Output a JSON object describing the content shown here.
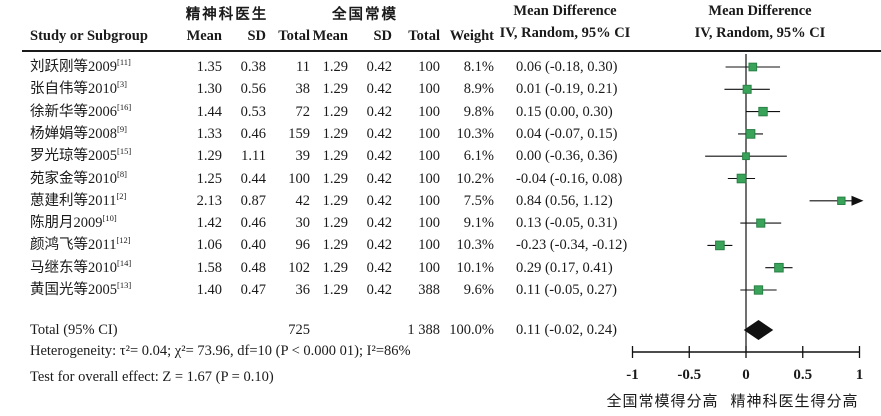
{
  "table": {
    "headers": {
      "group1": "精神科医生",
      "group2": "全国常模",
      "study": "Study or Subgroup",
      "mean": "Mean",
      "sd": "SD",
      "total": "Total",
      "weight": "Weight",
      "md_line1": "Mean Difference",
      "md_line2": "IV, Random, 95% CI"
    },
    "rows": [
      {
        "study": "刘跃刚等2009",
        "ref": "[11]",
        "mean1": "1.35",
        "sd1": "0.38",
        "total1": "11",
        "mean2": "1.29",
        "sd2": "0.42",
        "total2": "100",
        "weight": "8.1%",
        "ci_text": "0.06 (-0.18, 0.30)"
      },
      {
        "study": "张自伟等2010",
        "ref": "[3]",
        "mean1": "1.30",
        "sd1": "0.56",
        "total1": "38",
        "mean2": "1.29",
        "sd2": "0.42",
        "total2": "100",
        "weight": "8.9%",
        "ci_text": "0.01 (-0.19, 0.21)"
      },
      {
        "study": "徐新华等2006",
        "ref": "[16]",
        "mean1": "1.44",
        "sd1": "0.53",
        "total1": "72",
        "mean2": "1.29",
        "sd2": "0.42",
        "total2": "100",
        "weight": "9.8%",
        "ci_text": "0.15 (0.00, 0.30)"
      },
      {
        "study": "杨婵娟等2008",
        "ref": "[9]",
        "mean1": "1.33",
        "sd1": "0.46",
        "total1": "159",
        "mean2": "1.29",
        "sd2": "0.42",
        "total2": "100",
        "weight": "10.3%",
        "ci_text": "0.04 (-0.07, 0.15)"
      },
      {
        "study": "罗光琼等2005",
        "ref": "[15]",
        "mean1": "1.29",
        "sd1": "1.11",
        "total1": "39",
        "mean2": "1.29",
        "sd2": "0.42",
        "total2": "100",
        "weight": "6.1%",
        "ci_text": "0.00 (-0.36, 0.36)"
      },
      {
        "study": "苑家金等2010",
        "ref": "[8]",
        "mean1": "1.25",
        "sd1": "0.44",
        "total1": "100",
        "mean2": "1.29",
        "sd2": "0.42",
        "total2": "100",
        "weight": "10.2%",
        "ci_text": "-0.04 (-0.16, 0.08)"
      },
      {
        "study": "葸建利等2011",
        "ref": "[2]",
        "mean1": "2.13",
        "sd1": "0.87",
        "total1": "42",
        "mean2": "1.29",
        "sd2": "0.42",
        "total2": "100",
        "weight": "7.5%",
        "ci_text": "0.84 (0.56, 1.12)"
      },
      {
        "study": "陈朋月2009",
        "ref": "[10]",
        "mean1": "1.42",
        "sd1": "0.46",
        "total1": "30",
        "mean2": "1.29",
        "sd2": "0.42",
        "total2": "100",
        "weight": "9.1%",
        "ci_text": "0.13 (-0.05, 0.31)"
      },
      {
        "study": "颜鸿飞等2011",
        "ref": "[12]",
        "mean1": "1.06",
        "sd1": "0.40",
        "total1": "96",
        "mean2": "1.29",
        "sd2": "0.42",
        "total2": "100",
        "weight": "10.3%",
        "ci_text": "-0.23 (-0.34, -0.12)"
      },
      {
        "study": "马继东等2010",
        "ref": "[14]",
        "mean1": "1.58",
        "sd1": "0.48",
        "total1": "102",
        "mean2": "1.29",
        "sd2": "0.42",
        "total2": "100",
        "weight": "10.1%",
        "ci_text": "0.29 (0.17, 0.41)"
      },
      {
        "study": "黄国光等2005",
        "ref": "[13]",
        "mean1": "1.40",
        "sd1": "0.47",
        "total1": "36",
        "mean2": "1.29",
        "sd2": "0.42",
        "total2": "388",
        "weight": "9.6%",
        "ci_text": "0.11 (-0.05, 0.27)"
      }
    ],
    "total_row": {
      "label": "Total (95% CI)",
      "total1": "725",
      "total2": "1 388",
      "weight": "100.0%",
      "ci_text": "0.11 (-0.02, 0.24)"
    },
    "heterogeneity": "Heterogeneity: τ²= 0.04;  χ²= 73.96, df=10 (P < 0.000 01); I²=86%",
    "overall_effect": "Test for overall effect: Z = 1.67 (P = 0.10)"
  },
  "chart_data": {
    "type": "scatter",
    "subtype": "forest-plot",
    "title": "Mean Difference IV, Random, 95% CI",
    "xlim": [
      -1,
      1
    ],
    "x_ticks": [
      {
        "v": -1,
        "label": "-1"
      },
      {
        "v": -0.5,
        "label": "-0.5"
      },
      {
        "v": 0,
        "label": "0"
      },
      {
        "v": 0.5,
        "label": "0.5"
      },
      {
        "v": 1,
        "label": "1"
      }
    ],
    "xlabel_left": "全国常模得分高",
    "xlabel_right": "精神科医生得分高",
    "grid": false,
    "points": [
      {
        "study": "刘跃刚等2009",
        "md": 0.06,
        "lo": -0.18,
        "hi": 0.3,
        "weight_pct": 8.1
      },
      {
        "study": "张自伟等2010",
        "md": 0.01,
        "lo": -0.19,
        "hi": 0.21,
        "weight_pct": 8.9
      },
      {
        "study": "徐新华等2006",
        "md": 0.15,
        "lo": 0.0,
        "hi": 0.3,
        "weight_pct": 9.8
      },
      {
        "study": "杨婵娟等2008",
        "md": 0.04,
        "lo": -0.07,
        "hi": 0.15,
        "weight_pct": 10.3
      },
      {
        "study": "罗光琼等2005",
        "md": 0.0,
        "lo": -0.36,
        "hi": 0.36,
        "weight_pct": 6.1
      },
      {
        "study": "苑家金等2010",
        "md": -0.04,
        "lo": -0.16,
        "hi": 0.08,
        "weight_pct": 10.2
      },
      {
        "study": "葸建利等2011",
        "md": 0.84,
        "lo": 0.56,
        "hi": 1.12,
        "weight_pct": 7.5
      },
      {
        "study": "陈朋月2009",
        "md": 0.13,
        "lo": -0.05,
        "hi": 0.31,
        "weight_pct": 9.1
      },
      {
        "study": "颜鸿飞等2011",
        "md": -0.23,
        "lo": -0.34,
        "hi": -0.12,
        "weight_pct": 10.3
      },
      {
        "study": "马继东等2010",
        "md": 0.29,
        "lo": 0.17,
        "hi": 0.41,
        "weight_pct": 10.1
      },
      {
        "study": "黄国光等2005",
        "md": 0.11,
        "lo": -0.05,
        "hi": 0.27,
        "weight_pct": 9.6
      }
    ],
    "overall": {
      "md": 0.11,
      "lo": -0.02,
      "hi": 0.24
    },
    "colors": {
      "square": "#3aa35a",
      "square_border": "#2a8045",
      "diamond": "#111111",
      "line": "#111111"
    }
  }
}
